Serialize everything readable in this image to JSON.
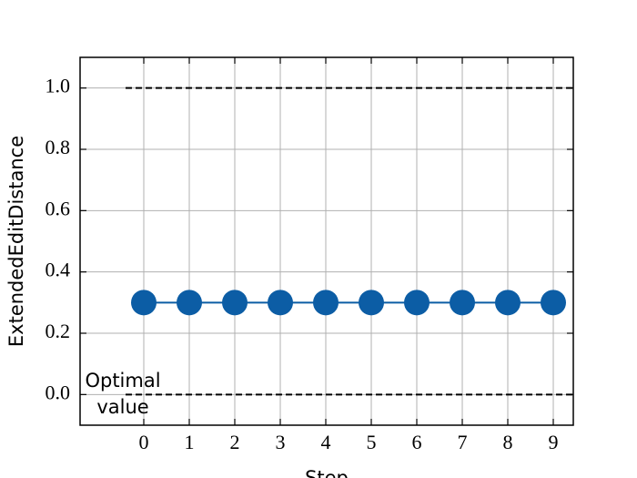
{
  "chart_data": {
    "type": "line",
    "x_label": "Step",
    "y_label": "ExtendedEditDistance",
    "x": [
      0,
      1,
      2,
      3,
      4,
      5,
      6,
      7,
      8,
      9
    ],
    "series": [
      {
        "name": "ExtendedEditDistance",
        "color": "#0c5da5",
        "values": [
          0.3,
          0.3,
          0.3,
          0.3,
          0.3,
          0.3,
          0.3,
          0.3,
          0.3,
          0.3
        ]
      }
    ],
    "xlim": [
      -1.4,
      9.44
    ],
    "ylim": [
      -0.1,
      1.1
    ],
    "xticks": [
      0,
      1,
      2,
      3,
      4,
      5,
      6,
      7,
      8,
      9
    ],
    "yticks": [
      {
        "value": 0,
        "label": "0.0"
      },
      0.2,
      0.4,
      0.6,
      0.8,
      {
        "value": 1,
        "label": "1.0"
      }
    ],
    "grid": true,
    "reference_lines": [
      {
        "y": 1,
        "xmin": -0.4
      },
      {
        "y": 0,
        "xmin": -0.4
      }
    ],
    "annotation": [
      "Optimal",
      "value"
    ]
  }
}
